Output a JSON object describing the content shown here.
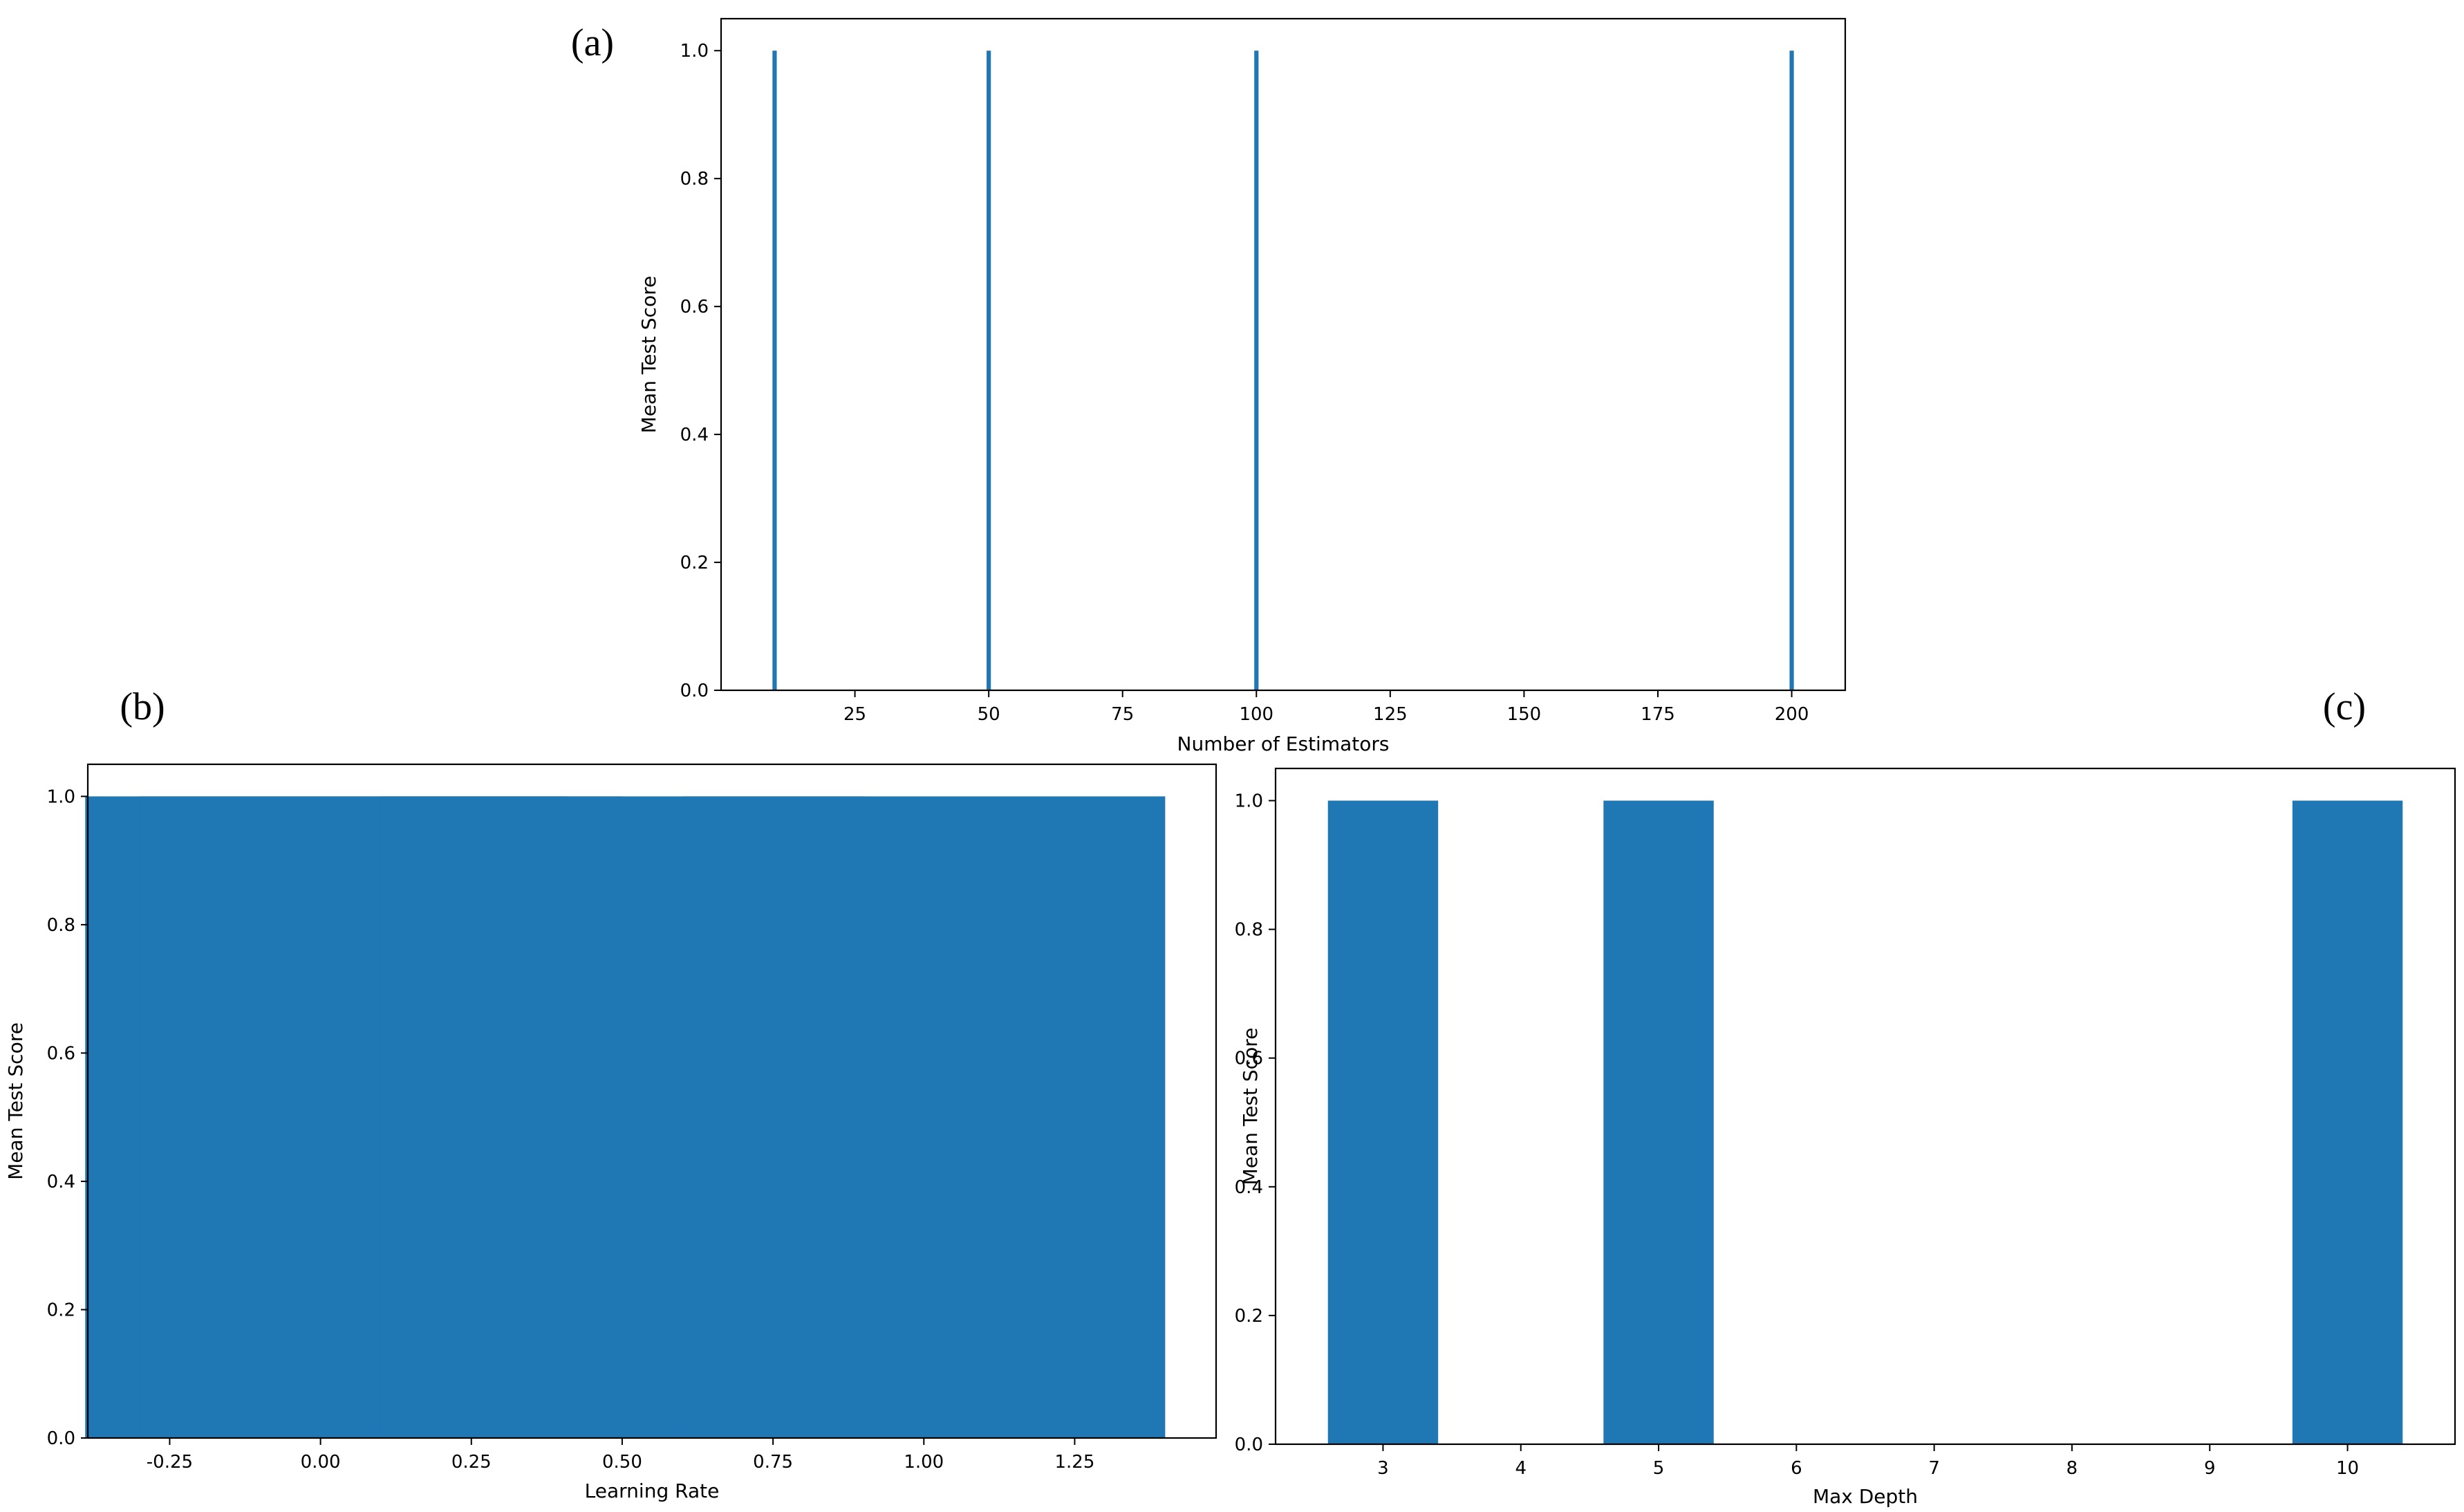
{
  "chart_data": [
    {
      "panel": "(a)",
      "type": "bar",
      "x": [
        10,
        50,
        100,
        200
      ],
      "values": [
        1.0,
        1.0,
        1.0,
        1.0
      ],
      "bar_width": 0.8,
      "xlabel": "Number of Estimators",
      "ylabel": "Mean Test Score",
      "xlim": [
        0.0,
        210.0
      ],
      "ylim": [
        0.0,
        1.05
      ],
      "xticks": [
        "25",
        "50",
        "75",
        "100",
        "125",
        "150",
        "175",
        "200"
      ],
      "xtick_values": [
        25,
        50,
        75,
        100,
        125,
        150,
        175,
        200
      ],
      "yticks": [
        "0.0",
        "0.2",
        "0.4",
        "0.6",
        "0.8",
        "1.0"
      ],
      "ytick_values": [
        0.0,
        0.2,
        0.4,
        0.6,
        0.8,
        1.0
      ],
      "color": "#1f77b4",
      "grid": false
    },
    {
      "panel": "(b)",
      "type": "bar",
      "x": [
        0.01,
        0.1,
        0.5,
        1.0
      ],
      "values": [
        1.0,
        1.0,
        1.0,
        1.0
      ],
      "bar_width": 0.8,
      "xlabel": "Learning Rate",
      "ylabel": "Mean Test Score",
      "xlim": [
        -0.3857,
        1.4844
      ],
      "ylim": [
        0.0,
        1.05
      ],
      "xticks": [
        "-0.25",
        "0.00",
        "0.25",
        "0.50",
        "0.75",
        "1.00",
        "1.25"
      ],
      "xtick_values": [
        -0.25,
        0.0,
        0.25,
        0.5,
        0.75,
        1.0,
        1.25
      ],
      "yticks": [
        "0.0",
        "0.2",
        "0.4",
        "0.6",
        "0.8",
        "1.0"
      ],
      "ytick_values": [
        0.0,
        0.2,
        0.4,
        0.6,
        0.8,
        1.0
      ],
      "color": "#1f77b4",
      "grid": false
    },
    {
      "panel": "(c)",
      "type": "bar",
      "x": [
        3,
        5,
        10
      ],
      "values": [
        1.0,
        1.0,
        1.0
      ],
      "bar_width": 0.8,
      "xlabel": "Max Depth",
      "ylabel": "Mean Test Score",
      "xlim": [
        2.22,
        10.78
      ],
      "ylim": [
        0.0,
        1.05
      ],
      "xticks": [
        "3",
        "4",
        "5",
        "6",
        "7",
        "8",
        "9",
        "10"
      ],
      "xtick_values": [
        3,
        4,
        5,
        6,
        7,
        8,
        9,
        10
      ],
      "yticks": [
        "0.0",
        "0.2",
        "0.4",
        "0.6",
        "0.8",
        "1.0"
      ],
      "ytick_values": [
        0.0,
        0.2,
        0.4,
        0.6,
        0.8,
        1.0
      ],
      "color": "#1f77b4",
      "grid": false
    }
  ]
}
